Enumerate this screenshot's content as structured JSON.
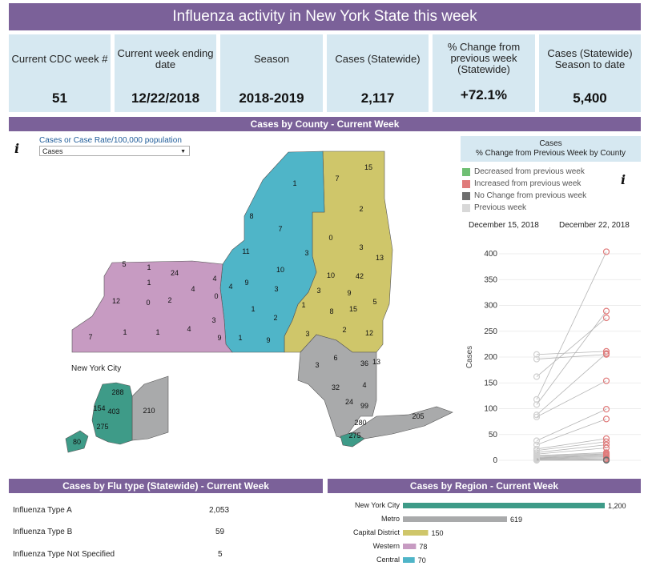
{
  "title": "Influenza activity in New York State this week",
  "kpis": [
    {
      "label": "Current CDC week #",
      "value": "51"
    },
    {
      "label": "Current week ending date",
      "value": "12/22/2018"
    },
    {
      "label": "Season",
      "value": "2018-2019"
    },
    {
      "label": "Cases (Statewide)",
      "value": "2,117"
    },
    {
      "label": "% Change from previous week (Statewide)",
      "value": "+72.1%"
    },
    {
      "label": "Cases  (Statewide) Season to date",
      "value": "5,400"
    }
  ],
  "county_section": {
    "title": "Cases by County - Current Week",
    "info_icon": "i",
    "dropdown_label": "Cases or Case Rate/100,000 population",
    "dropdown_value": "Cases",
    "nyc_label": "New York City"
  },
  "colors": {
    "header": "#7b6199",
    "kpi_bg": "#d6e8f1",
    "western": "#c79bc2",
    "central": "#4fb5c8",
    "capital": "#cfc66a",
    "metro": "#a9aaab",
    "nyc": "#3e9b88",
    "decreased": "#6fbf73",
    "increased": "#e07b7b",
    "no_change": "#6e6e6e",
    "previous": "#d8d8d8"
  },
  "map_labels": [
    {
      "text": "1"
    },
    {
      "text": "7"
    },
    {
      "text": "15"
    },
    {
      "text": "8"
    },
    {
      "text": "7"
    },
    {
      "text": "2"
    },
    {
      "text": "0"
    },
    {
      "text": "3"
    },
    {
      "text": "13"
    },
    {
      "text": "11"
    },
    {
      "text": "10"
    },
    {
      "text": "3"
    },
    {
      "text": "5"
    },
    {
      "text": "1"
    },
    {
      "text": "24"
    },
    {
      "text": "4"
    },
    {
      "text": "1"
    },
    {
      "text": "4"
    },
    {
      "text": "9"
    },
    {
      "text": "3"
    },
    {
      "text": "10"
    },
    {
      "text": "42"
    },
    {
      "text": "12"
    },
    {
      "text": "0"
    },
    {
      "text": "2"
    },
    {
      "text": "0"
    },
    {
      "text": "3"
    },
    {
      "text": "9"
    },
    {
      "text": "4"
    },
    {
      "text": "1"
    },
    {
      "text": "1"
    },
    {
      "text": "8"
    },
    {
      "text": "15"
    },
    {
      "text": "5"
    },
    {
      "text": "3"
    },
    {
      "text": "7"
    },
    {
      "text": "1"
    },
    {
      "text": "1"
    },
    {
      "text": "4"
    },
    {
      "text": "9"
    },
    {
      "text": "1"
    },
    {
      "text": "9"
    },
    {
      "text": "2"
    },
    {
      "text": "3"
    },
    {
      "text": "2"
    },
    {
      "text": "12"
    },
    {
      "text": "6"
    },
    {
      "text": "13"
    },
    {
      "text": "36"
    },
    {
      "text": "3"
    },
    {
      "text": "32"
    },
    {
      "text": "4"
    },
    {
      "text": "24"
    },
    {
      "text": "99"
    },
    {
      "text": "205"
    },
    {
      "text": "280"
    },
    {
      "text": "275"
    },
    {
      "text": "288"
    },
    {
      "text": "154"
    },
    {
      "text": "403"
    },
    {
      "text": "275"
    },
    {
      "text": "210"
    },
    {
      "text": "80"
    }
  ],
  "legend": {
    "title_line1": "Cases",
    "title_line2": "% Change from Previous Week by County",
    "items": [
      "Decreased from previous week",
      "Increased from previous week",
      "No Change from previous week",
      "Previous week"
    ],
    "info_icon": "i"
  },
  "chart_data": [
    {
      "type": "line",
      "title": "",
      "x": [
        "December 15, 2018",
        "December 22, 2018"
      ],
      "ylabel": "Cases",
      "ylim": [
        0,
        400
      ],
      "yticks": [
        "0",
        "50",
        "100",
        "150",
        "200",
        "250",
        "300",
        "350",
        "400"
      ],
      "series": [
        {
          "values": [
            118,
            404
          ]
        },
        {
          "values": [
            108,
            289
          ]
        },
        {
          "values": [
            162,
            276
          ]
        },
        {
          "values": [
            196,
            205
          ]
        },
        {
          "values": [
            205,
            211
          ]
        },
        {
          "values": [
            88,
            207
          ]
        },
        {
          "values": [
            84,
            154
          ]
        },
        {
          "values": [
            38,
            99
          ]
        },
        {
          "values": [
            30,
            80
          ]
        },
        {
          "values": [
            22,
            42
          ]
        },
        {
          "values": [
            19,
            36
          ]
        },
        {
          "values": [
            15,
            30
          ]
        },
        {
          "values": [
            12,
            24
          ]
        },
        {
          "values": [
            9,
            15
          ]
        },
        {
          "values": [
            8,
            13
          ]
        },
        {
          "values": [
            6,
            12
          ]
        },
        {
          "values": [
            5,
            10
          ]
        },
        {
          "values": [
            4,
            9
          ]
        },
        {
          "values": [
            3,
            7
          ]
        },
        {
          "values": [
            2,
            5
          ]
        },
        {
          "values": [
            1,
            3
          ]
        },
        {
          "values": [
            1,
            1
          ]
        },
        {
          "values": [
            0,
            0
          ]
        }
      ]
    },
    {
      "type": "bar",
      "title": "Cases by Region  - Current Week",
      "categories": [
        "New York City",
        "Metro",
        "Capital District",
        "Western",
        "Central"
      ],
      "values": [
        1200,
        619,
        150,
        78,
        70
      ],
      "value_labels": [
        "1,200",
        "619",
        "150",
        "78",
        "70"
      ],
      "colors": [
        "#3e9b88",
        "#a9aaab",
        "#cfc66a",
        "#c79bc2",
        "#4fb5c8"
      ]
    }
  ],
  "flu_type": {
    "title": "Cases by Flu type (Statewide) - Current Week",
    "rows": [
      {
        "label": "Influenza Type A",
        "value": "2,053"
      },
      {
        "label": "Influenza Type B",
        "value": "59"
      },
      {
        "label": "Influenza Type Not Specified",
        "value": "5"
      }
    ]
  }
}
